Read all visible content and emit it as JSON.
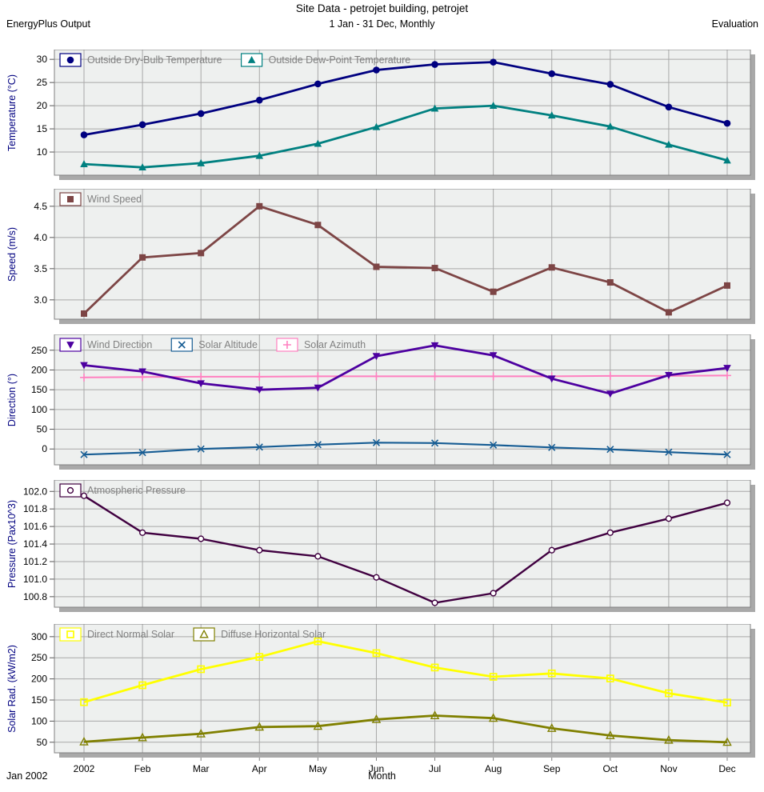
{
  "header": {
    "title": "Site Data - petrojet building, petrojet",
    "left": "EnergyPlus Output",
    "center": "1 Jan - 31 Dec, Monthly",
    "right": "Evaluation"
  },
  "footer": {
    "left": "Jan 2002",
    "center": "Month"
  },
  "palette": {
    "plot_bg": "#eef0ef",
    "gridline": "#a8a8a8",
    "frame": "#808080",
    "shadow": "#a9a9a9",
    "tick_text": "#000000",
    "axis_label": "#000080",
    "legend_text": "#808080",
    "legend_box_fill": "#ffffff"
  },
  "chart_data": [
    {
      "type": "line",
      "id": "temperature",
      "ylabel": "Temperature (°C)",
      "ylim": [
        5,
        32.1
      ],
      "yticks": [
        10,
        15,
        20,
        25,
        30
      ],
      "ytick_labels": [
        "10",
        "15",
        "20",
        "25",
        "30"
      ],
      "categories": [
        "2002",
        "Feb",
        "Mar",
        "Apr",
        "May",
        "Jun",
        "Jul",
        "Aug",
        "Sep",
        "Oct",
        "Nov",
        "Dec"
      ],
      "series": [
        {
          "name": "Outside Dry-Bulb Temperature",
          "color": "#000080",
          "marker": "circle-filled",
          "lw": 2.8,
          "values": [
            13.7,
            15.9,
            18.3,
            21.2,
            24.7,
            27.7,
            28.9,
            29.4,
            26.9,
            24.6,
            19.7,
            16.2
          ]
        },
        {
          "name": "Outside Dew-Point Temperature",
          "color": "#008080",
          "marker": "triangle-up-filled",
          "lw": 2.8,
          "values": [
            7.4,
            6.7,
            7.6,
            9.2,
            11.8,
            15.4,
            19.4,
            20.0,
            17.9,
            15.5,
            11.6,
            8.2
          ]
        }
      ]
    },
    {
      "type": "line",
      "id": "wind-speed",
      "ylabel": "Speed (m/s)",
      "ylim": [
        2.69,
        4.78
      ],
      "yticks": [
        3.0,
        3.5,
        4.0,
        4.5
      ],
      "ytick_labels": [
        "3.0",
        "3.5",
        "4.0",
        "4.5"
      ],
      "categories": [
        "2002",
        "Feb",
        "Mar",
        "Apr",
        "May",
        "Jun",
        "Jul",
        "Aug",
        "Sep",
        "Oct",
        "Nov",
        "Dec"
      ],
      "series": [
        {
          "name": "Wind Speed",
          "color": "#7d4545",
          "marker": "square-filled",
          "lw": 2.8,
          "values": [
            2.78,
            3.68,
            3.75,
            4.5,
            4.2,
            3.53,
            3.51,
            3.13,
            3.52,
            3.28,
            2.8,
            3.23
          ]
        }
      ]
    },
    {
      "type": "line",
      "id": "direction",
      "ylabel": "Direction (°)",
      "ylim": [
        -40,
        290
      ],
      "yticks": [
        0,
        50,
        100,
        150,
        200,
        250
      ],
      "ytick_labels": [
        "0",
        "50",
        "100",
        "150",
        "200",
        "250"
      ],
      "categories": [
        "2002",
        "Feb",
        "Mar",
        "Apr",
        "May",
        "Jun",
        "Jul",
        "Aug",
        "Sep",
        "Oct",
        "Nov",
        "Dec"
      ],
      "series": [
        {
          "name": "Wind Direction",
          "color": "#4d00a0",
          "marker": "triangle-down-filled",
          "lw": 2.8,
          "values": [
            212,
            196,
            166,
            150,
            155,
            235,
            262,
            237,
            178,
            140,
            187,
            205
          ]
        },
        {
          "name": "Solar Altitude",
          "color": "#175d94",
          "marker": "x",
          "lw": 2.2,
          "values": [
            -14,
            -9,
            0,
            5,
            11,
            16,
            15,
            10,
            4,
            -1,
            -8,
            -14
          ]
        },
        {
          "name": "Solar Azimuth",
          "color": "#ff80c0",
          "marker": "plus",
          "lw": 2,
          "values": [
            181,
            182,
            183,
            183,
            184,
            184,
            184,
            184,
            184,
            185,
            185,
            186
          ]
        }
      ]
    },
    {
      "type": "line",
      "id": "pressure",
      "ylabel": "Pressure (Pax10^3)",
      "ylim": [
        100.68,
        102.13
      ],
      "yticks": [
        100.8,
        101.0,
        101.2,
        101.4,
        101.6,
        101.8,
        102.0
      ],
      "ytick_labels": [
        "100.8",
        "101.0",
        "101.2",
        "101.4",
        "101.6",
        "101.8",
        "102.0"
      ],
      "categories": [
        "2002",
        "Feb",
        "Mar",
        "Apr",
        "May",
        "Jun",
        "Jul",
        "Aug",
        "Sep",
        "Oct",
        "Nov",
        "Dec"
      ],
      "series": [
        {
          "name": "Atmospheric Pressure",
          "color": "#400040",
          "marker": "circle-open",
          "lw": 2.4,
          "values": [
            101.95,
            101.53,
            101.46,
            101.33,
            101.26,
            101.02,
            100.73,
            100.84,
            101.33,
            101.53,
            101.69,
            101.87
          ]
        }
      ]
    },
    {
      "type": "line",
      "id": "solar-radiation",
      "ylabel": "Solar Rad. (kW/m2)",
      "ylim": [
        25,
        330
      ],
      "yticks": [
        50,
        100,
        150,
        200,
        250,
        300
      ],
      "ytick_labels": [
        "50",
        "100",
        "150",
        "200",
        "250",
        "300"
      ],
      "categories": [
        "2002",
        "Feb",
        "Mar",
        "Apr",
        "May",
        "Jun",
        "Jul",
        "Aug",
        "Sep",
        "Oct",
        "Nov",
        "Dec"
      ],
      "series": [
        {
          "name": "Direct Normal Solar",
          "color": "#ffff00",
          "marker": "square-open",
          "lw": 2.8,
          "values": [
            145,
            185,
            223,
            252,
            289,
            261,
            227,
            205,
            213,
            201,
            166,
            144
          ]
        },
        {
          "name": "Diffuse Horizontal Solar",
          "color": "#808000",
          "marker": "triangle-up-open",
          "lw": 2.8,
          "values": [
            51,
            61,
            70,
            86,
            88,
            104,
            113,
            107,
            83,
            66,
            55,
            50
          ]
        }
      ]
    }
  ]
}
